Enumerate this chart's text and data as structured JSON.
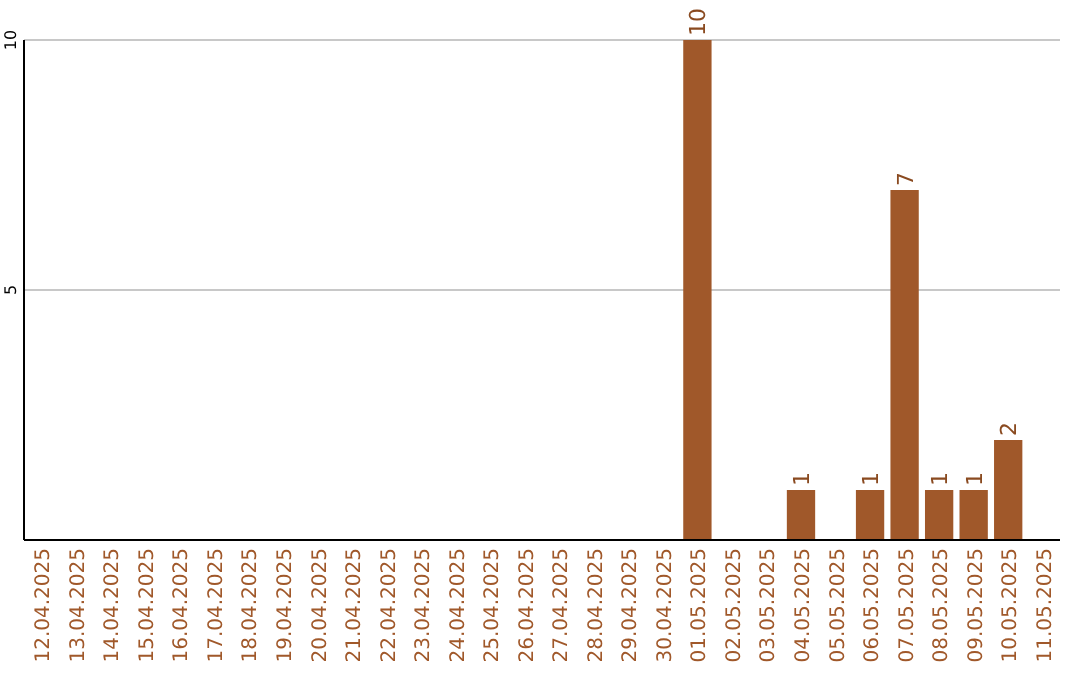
{
  "chart_data": {
    "type": "bar",
    "categories": [
      "12.04.2025",
      "13.04.2025",
      "14.04.2025",
      "15.04.2025",
      "16.04.2025",
      "17.04.2025",
      "18.04.2025",
      "19.04.2025",
      "20.04.2025",
      "21.04.2025",
      "22.04.2025",
      "23.04.2025",
      "24.04.2025",
      "25.04.2025",
      "26.04.2025",
      "27.04.2025",
      "28.04.2025",
      "29.04.2025",
      "30.04.2025",
      "01.05.2025",
      "02.05.2025",
      "03.05.2025",
      "04.05.2025",
      "05.05.2025",
      "06.05.2025",
      "07.05.2025",
      "08.05.2025",
      "09.05.2025",
      "10.05.2025",
      "11.05.2025"
    ],
    "values": [
      0,
      0,
      0,
      0,
      0,
      0,
      0,
      0,
      0,
      0,
      0,
      0,
      0,
      0,
      0,
      0,
      0,
      0,
      0,
      10,
      0,
      0,
      1,
      0,
      1,
      7,
      1,
      1,
      2,
      0
    ],
    "value_labels": [
      null,
      null,
      null,
      null,
      null,
      null,
      null,
      null,
      null,
      null,
      null,
      null,
      null,
      null,
      null,
      null,
      null,
      null,
      null,
      "10",
      null,
      null,
      "1",
      null,
      "1",
      "7",
      "1",
      "1",
      "2",
      null
    ],
    "color": "#a0582a",
    "ylim": [
      0,
      10
    ],
    "yticks": [
      5,
      10
    ],
    "grid": "y"
  }
}
